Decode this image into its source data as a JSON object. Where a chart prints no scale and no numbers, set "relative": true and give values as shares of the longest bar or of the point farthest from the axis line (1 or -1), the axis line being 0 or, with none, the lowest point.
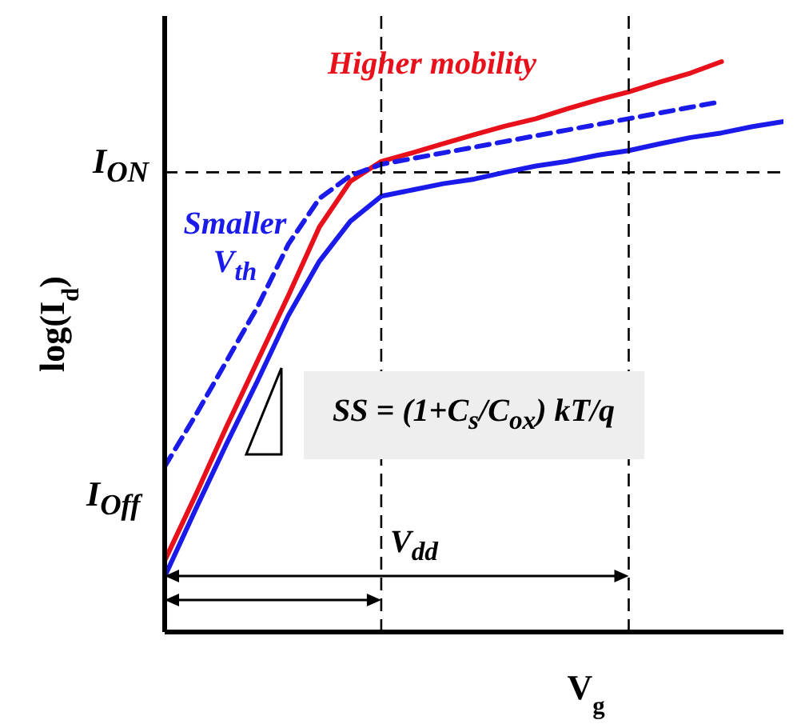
{
  "chart_data": {
    "type": "line",
    "relative": true,
    "xlabel": "V$_{g}$",
    "ylabel": "log(I$_{d}$)",
    "categories": [
      null,
      null,
      null,
      null,
      null,
      null,
      null,
      null,
      null,
      null,
      null,
      null,
      null,
      null,
      null,
      null,
      null,
      null,
      null,
      null,
      null
    ],
    "legend": false,
    "grid": false,
    "marker": "none",
    "series": [
      {
        "name": "Higher mobility",
        "color": "#e8101a",
        "values": [
          0.125,
          0.24,
          0.36,
          0.475,
          0.59,
          0.71,
          0.79,
          0.825,
          0.84,
          0.856,
          0.872,
          0.887,
          0.9,
          0.917,
          0.933,
          0.947,
          0.964,
          0.98,
          1.0,
          null,
          null
        ]
      },
      {
        "color": "#1a1aeb",
        "values": [
          0.097,
          0.215,
          0.33,
          0.44,
          0.555,
          0.65,
          0.72,
          0.764,
          0.775,
          0.786,
          0.794,
          0.806,
          0.817,
          0.825,
          0.836,
          0.844,
          0.856,
          0.867,
          0.875,
          0.886,
          0.895
        ]
      },
      {
        "name": "Smaller V$_{th}$",
        "color": "#1a1aeb",
        "line_style": "dashed",
        "values": [
          0.29,
          0.38,
          0.475,
          0.57,
          0.68,
          0.76,
          0.8,
          0.82,
          0.83,
          0.84,
          0.85,
          0.86,
          0.87,
          0.88,
          0.89,
          0.9,
          0.91,
          0.92,
          0.93,
          null,
          null
        ]
      }
    ],
    "ref_lines": [
      {
        "axis": "y",
        "value": 0.806,
        "color": "#000000",
        "line_style": "dashed"
      }
    ],
    "annotations": [
      "I$_{ON}$",
      "I$_{Off}$",
      "V$_{dd}$",
      "SS = (1+C$_{s}$/C$_{ox}$) kT/q"
    ]
  }
}
